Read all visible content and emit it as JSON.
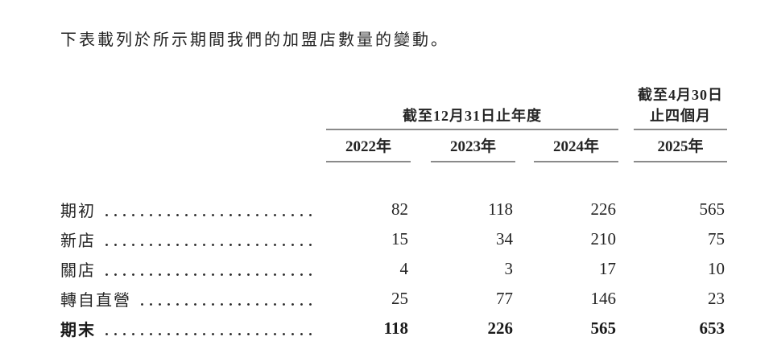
{
  "page": {
    "intro_text": "下表載列於所示期間我們的加盟店數量的變動。"
  },
  "table": {
    "group_annual": "截至12月31日止年度",
    "group_fourmonth_line1": "截至4月30日",
    "group_fourmonth_line2": "止四個月",
    "year_headers": [
      "2022年",
      "2023年",
      "2024年",
      "2025年"
    ],
    "rows": [
      {
        "label": "期初",
        "values": [
          "82",
          "118",
          "226",
          "565"
        ],
        "bold": false
      },
      {
        "label": "新店",
        "values": [
          "15",
          "34",
          "210",
          "75"
        ],
        "bold": false
      },
      {
        "label": "關店",
        "values": [
          "4",
          "3",
          "17",
          "10"
        ],
        "bold": false
      },
      {
        "label": "轉自直營",
        "values": [
          "25",
          "77",
          "146",
          "23"
        ],
        "bold": false
      },
      {
        "label": "期末",
        "values": [
          "118",
          "226",
          "565",
          "653"
        ],
        "bold": true
      }
    ],
    "colors": {
      "rule": "#8a8a8a",
      "text": "#242424"
    }
  }
}
